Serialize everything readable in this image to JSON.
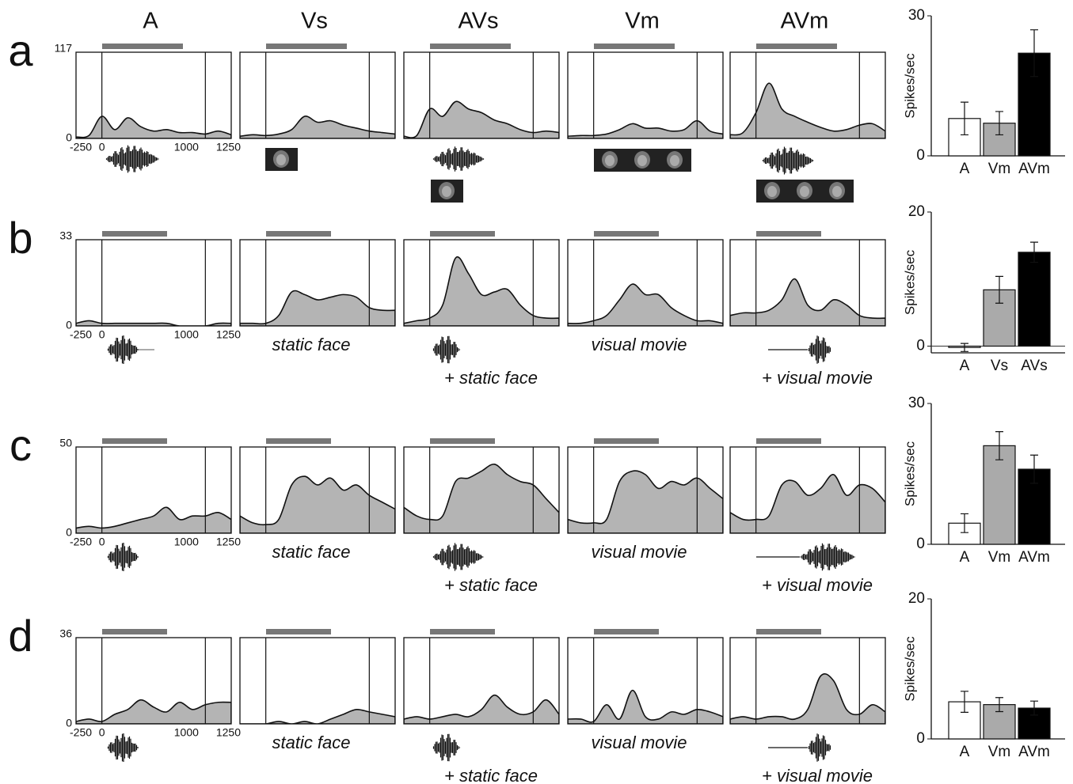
{
  "figure": {
    "column_headers": [
      "A",
      "Vs",
      "AVs",
      "Vm",
      "AVm"
    ],
    "rows": [
      {
        "label": "a",
        "psth": {
          "type": "area",
          "color": "#b4b4b4",
          "xlim": [
            -250,
            1250
          ],
          "xticks": [
            -250,
            0,
            1000,
            1250
          ],
          "ylim": [
            0,
            117
          ],
          "yticks": [
            0,
            117
          ],
          "x": [
            -250,
            -125,
            0,
            125,
            250,
            375,
            500,
            625,
            750,
            875,
            1000,
            1125,
            1250
          ],
          "panels": [
            {
              "values": [
                2,
                4,
                30,
                12,
                28,
                16,
                10,
                12,
                8,
                8,
                6,
                10,
                5
              ]
            },
            {
              "values": [
                3,
                5,
                4,
                6,
                12,
                30,
                22,
                24,
                18,
                14,
                10,
                8,
                6
              ]
            },
            {
              "values": [
                3,
                4,
                40,
                30,
                50,
                40,
                35,
                25,
                20,
                12,
                8,
                10,
                8
              ]
            },
            {
              "values": [
                3,
                4,
                4,
                6,
                12,
                20,
                14,
                14,
                10,
                12,
                24,
                10,
                6
              ]
            },
            {
              "values": [
                5,
                8,
                35,
                75,
                40,
                30,
                22,
                15,
                10,
                12,
                18,
                20,
                10
              ]
            }
          ]
        },
        "bars": {
          "type": "bar",
          "ylabel": "Spikes/sec",
          "categories": [
            "A",
            "Vm",
            "AVm"
          ],
          "values": [
            8,
            7,
            22
          ],
          "errors": [
            3.5,
            2.5,
            5
          ],
          "colors": [
            "#ffffff",
            "#aaaaaa",
            "#000000"
          ],
          "ylim": [
            0,
            30
          ],
          "yticks": [
            0,
            30
          ]
        }
      },
      {
        "label": "b",
        "psth": {
          "type": "area",
          "color": "#b4b4b4",
          "xlim": [
            -250,
            1250
          ],
          "xticks": [
            -250,
            0,
            1000,
            1250
          ],
          "ylim": [
            0,
            33
          ],
          "yticks": [
            0,
            33
          ],
          "x": [
            -250,
            -125,
            0,
            125,
            250,
            375,
            500,
            625,
            750,
            875,
            1000,
            1125,
            1250
          ],
          "panels": [
            {
              "values": [
                1,
                2,
                1,
                1,
                1,
                1,
                1,
                1,
                0,
                0,
                0,
                1,
                1
              ]
            },
            {
              "values": [
                1,
                1,
                1,
                4,
                13,
                12,
                10,
                11,
                12,
                11,
                7,
                6,
                6
              ],
              "caption": "static face"
            },
            {
              "values": [
                1,
                2,
                3,
                8,
                26,
                20,
                12,
                13,
                14,
                8,
                4,
                3,
                3
              ],
              "caption": "+ static face"
            },
            {
              "values": [
                1,
                1,
                2,
                4,
                10,
                16,
                12,
                12,
                7,
                4,
                2,
                2,
                1
              ],
              "caption": "visual movie"
            },
            {
              "values": [
                4,
                5,
                5,
                6,
                10,
                18,
                8,
                6,
                10,
                8,
                4,
                3,
                3
              ],
              "caption": "+ visual movie"
            }
          ]
        },
        "bars": {
          "type": "bar",
          "ylabel": "Spikes/sec",
          "categories": [
            "A",
            "Vs",
            "AVs"
          ],
          "values": [
            -0.2,
            8.4,
            14
          ],
          "errors": [
            0.6,
            2,
            1.5
          ],
          "colors": [
            "#ffffff",
            "#aaaaaa",
            "#000000"
          ],
          "ylim": [
            -1,
            20
          ],
          "yticks": [
            0,
            20
          ]
        }
      },
      {
        "label": "c",
        "psth": {
          "type": "area",
          "color": "#b4b4b4",
          "xlim": [
            -250,
            1250
          ],
          "xticks": [
            -250,
            0,
            1000,
            1250
          ],
          "ylim": [
            0,
            50
          ],
          "yticks": [
            0,
            50
          ],
          "x": [
            -250,
            -125,
            0,
            125,
            250,
            375,
            500,
            625,
            750,
            875,
            1000,
            1125,
            1250
          ],
          "panels": [
            {
              "values": [
                3,
                4,
                3,
                4,
                6,
                8,
                10,
                15,
                8,
                10,
                10,
                12,
                8
              ]
            },
            {
              "values": [
                10,
                6,
                5,
                8,
                28,
                33,
                28,
                32,
                25,
                28,
                22,
                18,
                14
              ],
              "caption": "static face"
            },
            {
              "values": [
                15,
                10,
                8,
                10,
                30,
                32,
                36,
                40,
                34,
                30,
                28,
                20,
                12
              ],
              "caption": "+ static face"
            },
            {
              "values": [
                8,
                6,
                6,
                8,
                30,
                36,
                34,
                26,
                30,
                28,
                32,
                26,
                20
              ],
              "caption": "visual movie"
            },
            {
              "values": [
                12,
                8,
                8,
                10,
                28,
                30,
                22,
                26,
                34,
                22,
                28,
                26,
                18
              ],
              "caption": "+ visual movie"
            }
          ]
        },
        "bars": {
          "type": "bar",
          "ylabel": "Spikes/sec",
          "categories": [
            "A",
            "Vm",
            "AVm"
          ],
          "values": [
            4.5,
            21,
            16
          ],
          "errors": [
            2,
            3,
            3
          ],
          "colors": [
            "#ffffff",
            "#aaaaaa",
            "#000000"
          ],
          "ylim": [
            0,
            30
          ],
          "yticks": [
            0,
            30
          ]
        }
      },
      {
        "label": "d",
        "psth": {
          "type": "area",
          "color": "#b4b4b4",
          "xlim": [
            -250,
            1250
          ],
          "xticks": [
            -250,
            0,
            1000,
            1250
          ],
          "ylim": [
            0,
            36
          ],
          "yticks": [
            0,
            36
          ],
          "x": [
            -250,
            -125,
            0,
            125,
            250,
            375,
            500,
            625,
            750,
            875,
            1000,
            1125,
            1250
          ],
          "panels": [
            {
              "values": [
                1,
                2,
                1,
                4,
                6,
                10,
                7,
                5,
                9,
                6,
                8,
                9,
                9
              ]
            },
            {
              "values": [
                0,
                0,
                0,
                1,
                0,
                1,
                0,
                2,
                4,
                6,
                5,
                4,
                3
              ],
              "caption": "static face"
            },
            {
              "values": [
                2,
                3,
                2,
                3,
                4,
                3,
                6,
                12,
                7,
                4,
                5,
                10,
                4
              ],
              "caption": "+ static face"
            },
            {
              "values": [
                2,
                2,
                1,
                8,
                2,
                14,
                3,
                2,
                5,
                4,
                6,
                5,
                3
              ],
              "caption": "visual movie"
            },
            {
              "values": [
                2,
                3,
                2,
                3,
                3,
                2,
                6,
                20,
                18,
                6,
                4,
                8,
                5
              ],
              "caption": "+ visual movie"
            }
          ]
        },
        "bars": {
          "type": "bar",
          "ylabel": "Spikes/sec",
          "categories": [
            "A",
            "Vm",
            "AVm"
          ],
          "values": [
            5.3,
            4.9,
            4.4
          ],
          "errors": [
            1.5,
            1,
            1
          ],
          "colors": [
            "#ffffff",
            "#aaaaaa",
            "#000000"
          ],
          "ylim": [
            0,
            20
          ],
          "yticks": [
            0,
            20
          ]
        }
      }
    ]
  }
}
